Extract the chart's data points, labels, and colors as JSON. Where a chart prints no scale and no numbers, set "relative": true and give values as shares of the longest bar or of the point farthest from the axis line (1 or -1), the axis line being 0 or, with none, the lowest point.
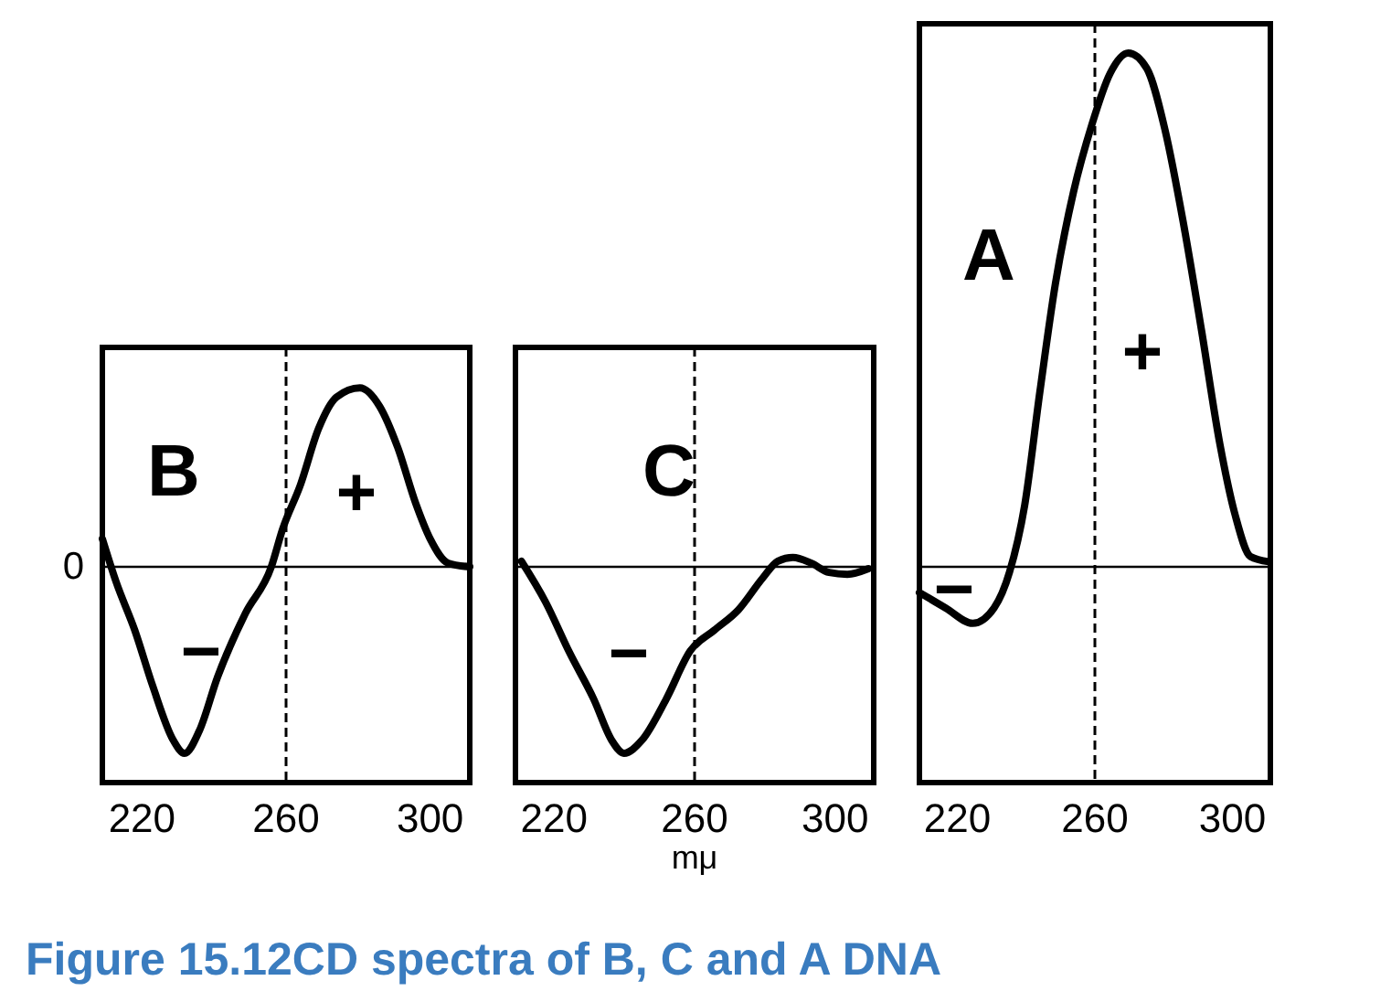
{
  "chart_data": [
    {
      "type": "line",
      "title": "B",
      "relative": true,
      "xlim": [
        209,
        311
      ],
      "xticks": [
        220,
        260,
        300
      ],
      "tick_labels": "x",
      "color": "#000000",
      "line_style": "solid",
      "x": [
        209,
        212.8,
        218,
        223,
        228.7,
        231.8,
        235.9,
        241,
        248.7,
        255.9,
        259,
        264,
        269,
        274,
        280.5,
        286,
        291,
        296,
        300,
        305,
        311
      ],
      "values": [
        0.15,
        -0.08,
        -0.34,
        -0.64,
        -0.93,
        -1,
        -0.88,
        -0.59,
        -0.25,
        0,
        0.2,
        0.44,
        0.74,
        0.91,
        0.96,
        0.86,
        0.64,
        0.34,
        0.15,
        0.02,
        0
      ],
      "ref_lines": [
        {
          "axis": "y",
          "value": 0,
          "label": "0"
        },
        {
          "axis": "x",
          "value": 260,
          "line_style": "dashed"
        }
      ],
      "annotations": [
        "−",
        "+"
      ]
    },
    {
      "type": "line",
      "title": "C",
      "relative": true,
      "xlim": [
        209,
        311
      ],
      "xticks": [
        220,
        260,
        300
      ],
      "tick_labels": "x",
      "xlabel": "mμ",
      "color": "#000000",
      "line_style": "solid",
      "x": [
        210.7,
        217.6,
        224.4,
        231.3,
        236.4,
        239.9,
        245,
        251.9,
        258.8,
        265.6,
        272.5,
        279.4,
        283.7,
        288,
        293.2,
        298.3,
        303.5,
        309.5
      ],
      "values": [
        0.03,
        -0.19,
        -0.46,
        -0.71,
        -0.93,
        -1,
        -0.93,
        -0.71,
        -0.45,
        -0.34,
        -0.23,
        -0.06,
        0.03,
        0.05,
        0.02,
        -0.03,
        -0.04,
        -0.01
      ],
      "ref_lines": [
        {
          "axis": "y",
          "value": 0
        },
        {
          "axis": "x",
          "value": 260,
          "line_style": "dashed"
        }
      ],
      "annotations": [
        "−"
      ]
    },
    {
      "type": "line",
      "title": "A",
      "relative": true,
      "xlim": [
        209,
        311
      ],
      "xticks": [
        220,
        260,
        300
      ],
      "tick_labels": "x",
      "color": "#000000",
      "line_style": "solid",
      "x": [
        209,
        216.6,
        224.5,
        230.7,
        235.2,
        239.6,
        244,
        248.5,
        253.8,
        259.1,
        264.4,
        269.7,
        275.1,
        280.4,
        285.7,
        291,
        296.3,
        300.8,
        305.2,
        310.5
      ],
      "values": [
        -0.05,
        -0.08,
        -0.11,
        -0.08,
        -0.01,
        0.12,
        0.34,
        0.55,
        0.73,
        0.86,
        0.96,
        1,
        0.97,
        0.85,
        0.67,
        0.46,
        0.24,
        0.1,
        0.02,
        0.01
      ],
      "ref_lines": [
        {
          "axis": "y",
          "value": 0
        },
        {
          "axis": "x",
          "value": 260,
          "line_style": "dashed"
        }
      ],
      "annotations": [
        "−",
        "+",
        "Figure 15.12CD spectra of B, C and A DNA"
      ]
    }
  ]
}
